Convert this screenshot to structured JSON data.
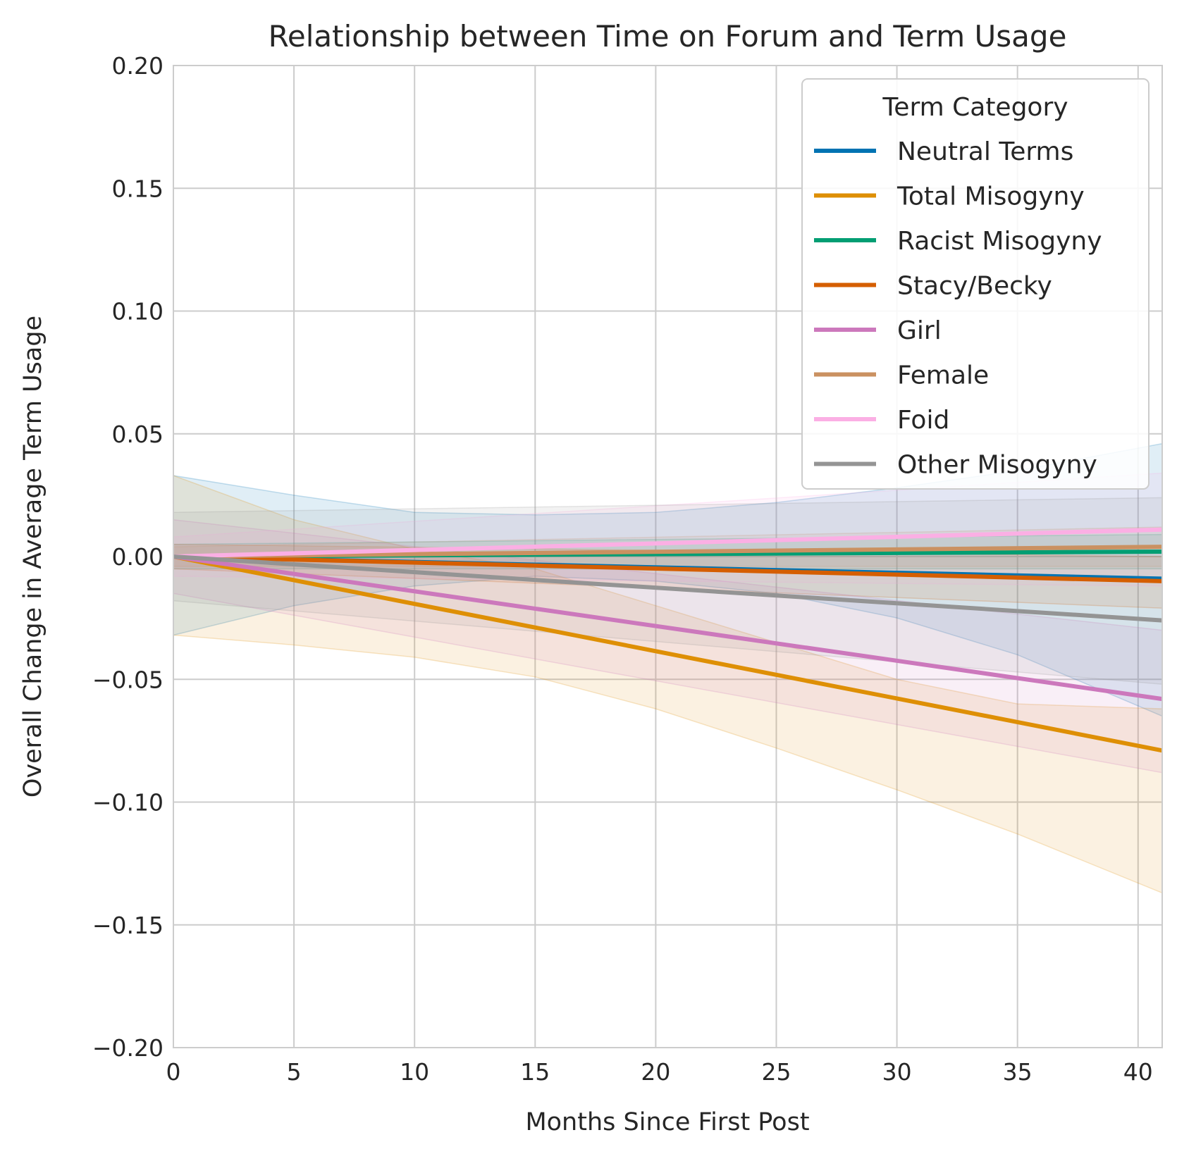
{
  "chart_data": {
    "type": "line",
    "title": "Relationship between Time on Forum and Term Usage",
    "xlabel": "Months Since First Post",
    "ylabel": "Overall Change in Average Term Usage",
    "xlim": [
      0,
      41
    ],
    "ylim": [
      -0.2,
      0.2
    ],
    "xticks": [
      0,
      5,
      10,
      15,
      20,
      25,
      30,
      35,
      40
    ],
    "xtick_labels": [
      "0",
      "5",
      "10",
      "15",
      "20",
      "25",
      "30",
      "35",
      "40"
    ],
    "yticks": [
      -0.2,
      -0.15,
      -0.1,
      -0.05,
      0,
      0.05,
      0.1,
      0.15,
      0.2
    ],
    "ytick_labels": [
      "−0.20",
      "−0.15",
      "−0.10",
      "−0.05",
      "0.00",
      "0.05",
      "0.10",
      "0.15",
      "0.20"
    ],
    "grid": true,
    "legend": {
      "title": "Term Category",
      "placement": "top-right"
    },
    "series": [
      {
        "name": "Neutral Terms",
        "color": "#0173b2",
        "x": [
          0,
          41
        ],
        "y": [
          0,
          -0.009
        ],
        "band_x": [
          0,
          5,
          10,
          15,
          20,
          25,
          30,
          35,
          41
        ],
        "band_upper": [
          0.033,
          0.025,
          0.018,
          0.017,
          0.018,
          0.022,
          0.028,
          0.035,
          0.046
        ],
        "band_lower": [
          -0.032,
          -0.02,
          -0.012,
          -0.008,
          -0.01,
          -0.015,
          -0.025,
          -0.04,
          -0.065
        ]
      },
      {
        "name": "Total Misogyny",
        "color": "#de8f05",
        "x": [
          0,
          41
        ],
        "y": [
          0,
          -0.079
        ],
        "band_x": [
          0,
          5,
          10,
          15,
          20,
          25,
          30,
          35,
          41
        ],
        "band_upper": [
          0.033,
          0.015,
          0.003,
          -0.005,
          -0.02,
          -0.035,
          -0.05,
          -0.06,
          -0.062
        ],
        "band_lower": [
          -0.032,
          -0.036,
          -0.041,
          -0.049,
          -0.062,
          -0.078,
          -0.095,
          -0.113,
          -0.137
        ]
      },
      {
        "name": "Racist Misogyny",
        "color": "#029e73",
        "x": [
          0,
          41
        ],
        "y": [
          0,
          0.002
        ],
        "band_x": [
          0,
          41
        ],
        "band_upper": [
          0.005,
          0.009
        ],
        "band_lower": [
          -0.005,
          -0.005
        ]
      },
      {
        "name": "Stacy/Becky",
        "color": "#d55e00",
        "x": [
          0,
          41
        ],
        "y": [
          0,
          -0.01
        ],
        "band_x": [
          0,
          41
        ],
        "band_upper": [
          0.005,
          0.0
        ],
        "band_lower": [
          -0.005,
          -0.021
        ]
      },
      {
        "name": "Girl",
        "color": "#cc78bc",
        "x": [
          0,
          41
        ],
        "y": [
          0,
          -0.058
        ],
        "band_x": [
          0,
          41
        ],
        "band_upper": [
          0.015,
          -0.03
        ],
        "band_lower": [
          -0.015,
          -0.088
        ]
      },
      {
        "name": "Female",
        "color": "#ca9161",
        "x": [
          0,
          41
        ],
        "y": [
          0,
          0.004
        ],
        "band_x": [
          0,
          41
        ],
        "band_upper": [
          0.004,
          0.012
        ],
        "band_lower": [
          -0.004,
          -0.004
        ]
      },
      {
        "name": "Foid",
        "color": "#fbafe4",
        "x": [
          0,
          41
        ],
        "y": [
          0,
          0.011
        ],
        "band_x": [
          0,
          41
        ],
        "band_upper": [
          0.008,
          0.034
        ],
        "band_lower": [
          -0.008,
          -0.012
        ]
      },
      {
        "name": "Other Misogyny",
        "color": "#949494",
        "x": [
          0,
          41
        ],
        "y": [
          0,
          -0.026
        ],
        "band_x": [
          0,
          41
        ],
        "band_upper": [
          0.018,
          0.024
        ],
        "band_lower": [
          -0.018,
          -0.052
        ]
      }
    ]
  }
}
